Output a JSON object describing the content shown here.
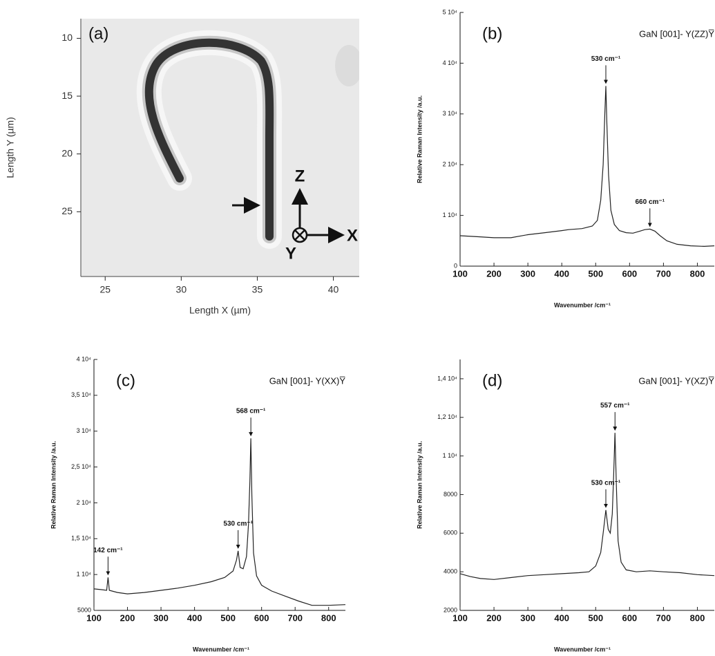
{
  "chart_data": [
    {
      "type": "image",
      "panel_label": "(a)",
      "xlabel": "Length X (µm)",
      "ylabel": "Length Y (µm)",
      "xlim": [
        23.4,
        41.7
      ],
      "xticks": [
        25,
        30,
        35,
        40
      ],
      "ylim": [
        8.3,
        30.6
      ],
      "yticks": [
        10,
        15,
        20,
        25
      ],
      "y_inverted": true,
      "annotations": [
        "Z",
        "X",
        "Y"
      ]
    },
    {
      "type": "line",
      "panel_label": "(b)",
      "title": "GaN [001]- Y(ZZ)Y̅",
      "xlabel": "Wavenumber /cm⁻¹",
      "ylabel": "Relative Raman Intensity /a.u.",
      "xlim": [
        100,
        850
      ],
      "xticks": [
        100,
        200,
        300,
        400,
        500,
        600,
        700,
        800
      ],
      "ylim": [
        0,
        50000
      ],
      "yticks": [
        0,
        {
          "value": 10000,
          "label": "1 10⁴"
        },
        {
          "value": 20000,
          "label": "2 10⁴"
        },
        {
          "value": 30000,
          "label": "3 10⁴"
        },
        {
          "value": 40000,
          "label": "4 10⁴"
        },
        {
          "value": 50000,
          "label": "5 10⁴"
        }
      ],
      "color": "#222",
      "x": [
        100,
        150,
        200,
        250,
        300,
        350,
        400,
        420,
        460,
        490,
        505,
        515,
        522,
        527,
        530,
        533,
        538,
        545,
        555,
        570,
        590,
        610,
        630,
        645,
        660,
        675,
        690,
        710,
        740,
        780,
        820,
        850
      ],
      "values": [
        6000,
        5800,
        5600,
        5600,
        6200,
        6600,
        7000,
        7200,
        7400,
        7900,
        9000,
        13000,
        20000,
        30000,
        35500,
        28000,
        18000,
        11000,
        8200,
        7000,
        6600,
        6500,
        6900,
        7200,
        7300,
        6900,
        6000,
        5000,
        4300,
        4000,
        3900,
        4000
      ],
      "annotations": [
        {
          "text": "530 cm⁻¹",
          "x": 530
        },
        {
          "text": "660 cm⁻¹",
          "x": 660
        }
      ]
    },
    {
      "type": "line",
      "panel_label": "(c)",
      "title": "GaN [001]- Y(XX)Y̅",
      "xlabel": "Wavenumber /cm⁻¹",
      "ylabel": "Relative Raman Intensity /a.u.",
      "xlim": [
        100,
        850
      ],
      "xticks": [
        100,
        200,
        300,
        400,
        500,
        600,
        700,
        800
      ],
      "ylim": [
        5000,
        40000
      ],
      "yticks": [
        5000,
        {
          "value": 10000,
          "label": "1 10⁴"
        },
        {
          "value": 15000,
          "label": "1,5 10⁴"
        },
        {
          "value": 20000,
          "label": "2 10⁴"
        },
        {
          "value": 25000,
          "label": "2,5 10⁴"
        },
        {
          "value": 30000,
          "label": "3 10⁴"
        },
        {
          "value": 35000,
          "label": "3,5 10⁴"
        },
        {
          "value": 40000,
          "label": "4 10⁴"
        }
      ],
      "color": "#222",
      "x": [
        100,
        120,
        138,
        142,
        146,
        170,
        200,
        250,
        300,
        350,
        400,
        450,
        490,
        515,
        525,
        530,
        536,
        545,
        555,
        561,
        565,
        568,
        571,
        576,
        585,
        600,
        630,
        670,
        710,
        750,
        800,
        850
      ],
      "values": [
        8000,
        7900,
        7800,
        9600,
        7800,
        7500,
        7300,
        7500,
        7800,
        8100,
        8500,
        9000,
        9600,
        10500,
        12000,
        13300,
        11000,
        10800,
        12500,
        17000,
        23000,
        29000,
        21000,
        13000,
        9800,
        8500,
        7700,
        7000,
        6300,
        5700,
        5700,
        5800
      ],
      "annotations": [
        {
          "text": "142 cm⁻¹",
          "x": 142
        },
        {
          "text": "530 cm⁻¹",
          "x": 530
        },
        {
          "text": "568 cm⁻¹",
          "x": 568
        }
      ]
    },
    {
      "type": "line",
      "panel_label": "(d)",
      "title": "GaN [001]- Y(XZ)Y̅",
      "xlabel": "Wavenumber /cm⁻¹",
      "ylabel": "Relative Raman Intensity /a.u.",
      "xlim": [
        100,
        850
      ],
      "xticks": [
        100,
        200,
        300,
        400,
        500,
        600,
        700,
        800
      ],
      "ylim": [
        2000,
        15000
      ],
      "yticks": [
        2000,
        4000,
        6000,
        8000,
        {
          "value": 10000,
          "label": "1 10⁴"
        },
        {
          "value": 12000,
          "label": "1,2 10⁴"
        },
        {
          "value": 14000,
          "label": "1,4 10⁴"
        }
      ],
      "color": "#222",
      "x": [
        100,
        130,
        160,
        200,
        250,
        300,
        350,
        400,
        450,
        480,
        500,
        515,
        522,
        530,
        537,
        543,
        549,
        553,
        557,
        561,
        566,
        575,
        590,
        620,
        660,
        700,
        750,
        800,
        850
      ],
      "values": [
        3900,
        3750,
        3650,
        3600,
        3700,
        3800,
        3850,
        3900,
        3950,
        4000,
        4300,
        5000,
        6000,
        7200,
        6200,
        6000,
        7000,
        9000,
        11200,
        8500,
        5600,
        4500,
        4100,
        4000,
        4050,
        4000,
        3950,
        3850,
        3800
      ],
      "annotations": [
        {
          "text": "530 cm⁻¹",
          "x": 530
        },
        {
          "text": "557 cm⁻¹",
          "x": 557
        }
      ]
    }
  ]
}
